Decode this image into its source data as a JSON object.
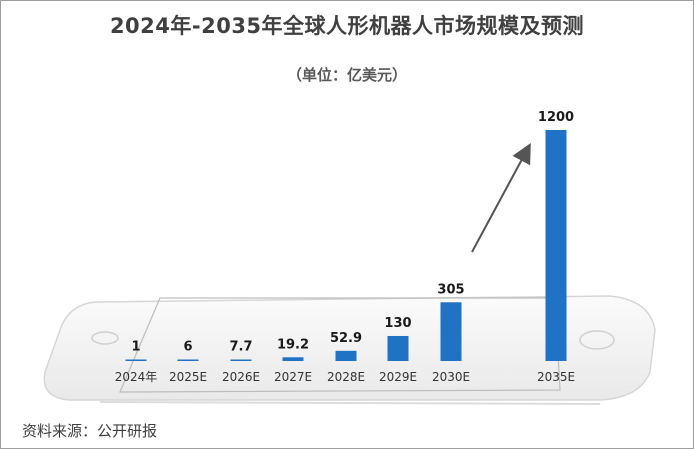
{
  "title": "2024年-2035年全球人形机器人市场规模及预测",
  "subtitle": "（单位：亿美元）",
  "source": "资料来源：公开研报",
  "colors": {
    "bar": "#1f72c4",
    "title": "#404040"
  },
  "chart_data": {
    "type": "bar",
    "title": "2024年-2035年全球人形机器人市场规模及预测",
    "ylabel": "",
    "xlabel": "",
    "categories": [
      "2024年",
      "2025E",
      "2026E",
      "2027E",
      "2028E",
      "2029E",
      "2030E",
      "2035E"
    ],
    "values": [
      1,
      6,
      7.7,
      19.2,
      52.9,
      130,
      305,
      1200
    ],
    "value_labels": [
      "1",
      "6",
      "7.7",
      "19.2",
      "52.9",
      "130",
      "305",
      "1200"
    ],
    "grid": false,
    "legend": "none",
    "annotations": [
      "upward trend arrow"
    ]
  }
}
